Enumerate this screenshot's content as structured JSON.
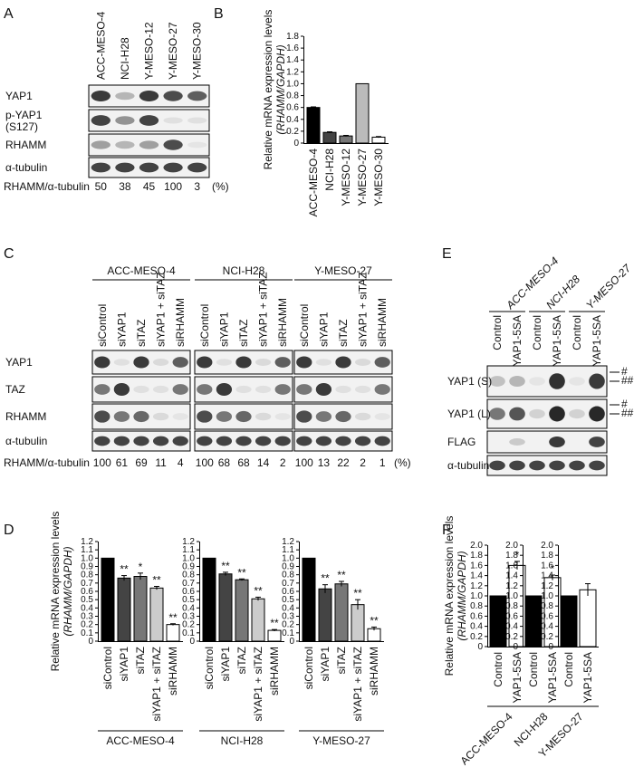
{
  "panels": {
    "A": {
      "letter": "A",
      "lanes": [
        "ACC-MESO-4",
        "NCI-H28",
        "Y-MESO-12",
        "Y-MESO-27",
        "Y-MESO-30"
      ],
      "blots": [
        {
          "label": "YAP1",
          "intensity": [
            0.9,
            0.35,
            0.9,
            0.8,
            0.7
          ]
        },
        {
          "label": "p-YAP1\n(S127)",
          "intensity": [
            0.85,
            0.5,
            0.85,
            0.1,
            0.1
          ]
        },
        {
          "label": "RHAMM",
          "intensity": [
            0.45,
            0.35,
            0.45,
            0.8,
            0.05
          ]
        },
        {
          "label": "α-tubulin",
          "intensity": [
            0.85,
            0.85,
            0.85,
            0.85,
            0.85
          ]
        }
      ],
      "quant_label": "RHAMM/α-tubulin",
      "quant_values": [
        "50",
        "38",
        "45",
        "100",
        "3"
      ],
      "quant_unit": "(%)"
    },
    "B": {
      "letter": "B",
      "ylabel_line1": "Relative mRNA expression levels",
      "ylabel_line2": "(RHAMM/GAPDH)",
      "ticks": [
        "0",
        "0.2",
        "0.4",
        "0.6",
        "0.8",
        "1.0",
        "1.2",
        "1.4",
        "1.6",
        "1.8"
      ]
    },
    "C": {
      "letter": "C",
      "groups": [
        "ACC-MESO-4",
        "NCI-H28",
        "Y-MESO-27"
      ],
      "lanes": [
        "siControl",
        "siYAP1",
        "siTAZ",
        "siYAP1 + siTAZ",
        "siRHAMM"
      ],
      "blots": [
        {
          "label": "YAP1",
          "intensity": [
            0.9,
            0.1,
            0.9,
            0.15,
            0.7
          ]
        },
        {
          "label": "TAZ",
          "intensity": [
            0.6,
            0.9,
            0.1,
            0.1,
            0.6
          ]
        },
        {
          "label": "RHAMM",
          "intensity": [
            0.8,
            0.6,
            0.65,
            0.15,
            0.05
          ]
        },
        {
          "label": "α-tubulin",
          "intensity": [
            0.85,
            0.85,
            0.85,
            0.85,
            0.85
          ]
        }
      ],
      "quant_label": "RHAMM/α-tubulin",
      "quant_values": [
        [
          "100",
          "61",
          "69",
          "11",
          "4"
        ],
        [
          "100",
          "68",
          "68",
          "14",
          "2"
        ],
        [
          "100",
          "13",
          "22",
          "2",
          "1"
        ]
      ],
      "quant_unit": "(%)"
    },
    "D": {
      "letter": "D",
      "ylabel_line1": "Relative mRNA expression levels",
      "ylabel_line2": "(RHAMM/GAPDH)",
      "ticks": [
        "0",
        "0.1",
        "0.2",
        "0.3",
        "0.4",
        "0.5",
        "0.6",
        "0.7",
        "0.8",
        "0.9",
        "1.0",
        "1.1",
        "1.2"
      ],
      "categories": [
        "siControl",
        "siYAP1",
        "siTAZ",
        "siYAP1 + siTAZ",
        "siRHAMM"
      ],
      "groups": [
        "ACC-MESO-4",
        "NCI-H28",
        "Y-MESO-27"
      ]
    },
    "E": {
      "letter": "E",
      "groups": [
        "ACC-MESO-4",
        "NCI-H28",
        "Y-MESO-27"
      ],
      "lanes": [
        "Control",
        "YAP1-5SA",
        "Control",
        "YAP1-5SA",
        "Control",
        "YAP1-5SA"
      ],
      "blots": [
        {
          "label": "YAP1 (S)",
          "intensity": [
            0.3,
            0.35,
            0.05,
            0.95,
            0.05,
            0.9
          ]
        },
        {
          "label": "YAP1 (L)",
          "intensity": [
            0.6,
            0.75,
            0.2,
            1.0,
            0.2,
            1.0
          ]
        },
        {
          "label": "FLAG",
          "intensity": [
            0.0,
            0.25,
            0.0,
            0.9,
            0.0,
            0.85
          ]
        },
        {
          "label": "α-tubulin",
          "intensity": [
            0.85,
            0.85,
            0.85,
            0.85,
            0.85,
            0.85
          ]
        }
      ],
      "marker_hash": "#",
      "marker_double_hash": "##"
    },
    "F": {
      "letter": "F",
      "ylabel_line1": "Relative mRNA expression levels",
      "ylabel_line2": "(RHAMM/GAPDH)",
      "ticks": [
        "0",
        "0.2",
        "0.4",
        "0.6",
        "0.8",
        "1.0",
        "1.2",
        "1.4",
        "1.6",
        "1.8",
        "2.0"
      ],
      "categories": [
        "Control",
        "YAP1-5SA"
      ],
      "groups": [
        "ACC-MESO-4",
        "NCI-H28",
        "Y-MESO-27"
      ]
    }
  },
  "chart_data": [
    {
      "panel": "B",
      "type": "bar",
      "categories": [
        "ACC-MESO-4",
        "NCI-H28",
        "Y-MESO-12",
        "Y-MESO-27",
        "Y-MESO-30"
      ],
      "values": [
        0.6,
        0.18,
        0.12,
        1.0,
        0.1
      ],
      "errors": [
        0.01,
        0.01,
        0.01,
        0,
        0.01
      ],
      "colors": [
        "#000000",
        "#444444",
        "#777777",
        "#bbbbbb",
        "#ffffff"
      ],
      "ylabel": "Relative mRNA expression levels (RHAMM/GAPDH)",
      "ylim": [
        0,
        1.8
      ]
    },
    {
      "panel": "D",
      "type": "bar",
      "categories": [
        "siControl",
        "siYAP1",
        "siTAZ",
        "siYAP1 + siTAZ",
        "siRHAMM"
      ],
      "colors": [
        "#000000",
        "#444444",
        "#777777",
        "#cccccc",
        "#ffffff"
      ],
      "ylabel": "Relative mRNA expression levels (RHAMM/GAPDH)",
      "ylim": [
        0,
        1.2
      ],
      "groups": [
        {
          "name": "ACC-MESO-4",
          "values": [
            1.0,
            0.76,
            0.78,
            0.64,
            0.2
          ],
          "errors": [
            0,
            0.03,
            0.04,
            0.02,
            0.01
          ],
          "sig": [
            "",
            "**",
            "*",
            "**",
            "**"
          ]
        },
        {
          "name": "NCI-H28",
          "values": [
            1.0,
            0.81,
            0.74,
            0.51,
            0.13
          ],
          "errors": [
            0,
            0.02,
            0.01,
            0.02,
            0.01
          ],
          "sig": [
            "",
            "**",
            "**",
            "**",
            "**"
          ]
        },
        {
          "name": "Y-MESO-27",
          "values": [
            1.0,
            0.63,
            0.69,
            0.44,
            0.15
          ],
          "errors": [
            0,
            0.05,
            0.03,
            0.06,
            0.02
          ],
          "sig": [
            "",
            "**",
            "**",
            "**",
            "**"
          ]
        }
      ]
    },
    {
      "panel": "F",
      "type": "bar",
      "categories": [
        "Control",
        "YAP1-5SA"
      ],
      "colors": [
        "#000000",
        "#ffffff"
      ],
      "ylabel": "Relative mRNA expression levels (RHAMM/GAPDH)",
      "ylim": [
        0,
        2.0
      ],
      "groups": [
        {
          "name": "ACC-MESO-4",
          "values": [
            1.0,
            1.6
          ],
          "errors": [
            0,
            0.08
          ],
          "sig": [
            "",
            "*"
          ]
        },
        {
          "name": "NCI-H28",
          "values": [
            1.0,
            1.36
          ],
          "errors": [
            0,
            0.05
          ],
          "sig": [
            "",
            "*"
          ]
        },
        {
          "name": "Y-MESO-27",
          "values": [
            1.0,
            1.12
          ],
          "errors": [
            0,
            0.12
          ],
          "sig": [
            "",
            ""
          ]
        }
      ]
    }
  ]
}
